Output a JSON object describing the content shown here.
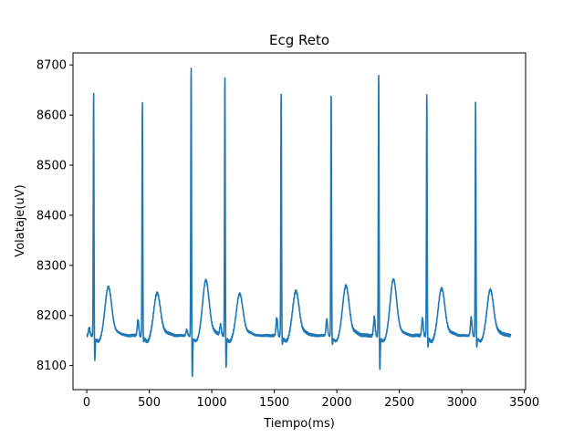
{
  "chart_data": {
    "type": "line",
    "title": "Ecg Reto",
    "xlabel": "Tiempo(ms)",
    "ylabel": "Volataje(uV)",
    "xlim": [
      -110,
      3510
    ],
    "ylim": [
      8052,
      8724
    ],
    "x_ticks": [
      0,
      500,
      1000,
      1500,
      2000,
      2500,
      3000,
      3500
    ],
    "y_ticks": [
      8100,
      8200,
      8300,
      8400,
      8500,
      8600,
      8700
    ],
    "grid": false,
    "series": [
      {
        "color": "#1f77b4",
        "x_start": 0,
        "x_end": 3390,
        "baseline": 8160,
        "beats": [
          {
            "t": 55,
            "peak": 8655,
            "trough": 8112,
            "t_wave": 8257,
            "pre": 8175
          },
          {
            "t": 445,
            "peak": 8636,
            "trough": 8150,
            "t_wave": 8245,
            "pre": 8192
          },
          {
            "t": 835,
            "peak": 8707,
            "trough": 8080,
            "t_wave": 8270,
            "pre": 8172
          },
          {
            "t": 1105,
            "peak": 8685,
            "trough": 8100,
            "t_wave": 8243,
            "pre": 8180
          },
          {
            "t": 1555,
            "peak": 8655,
            "trough": 8145,
            "t_wave": 8248,
            "pre": 8196
          },
          {
            "t": 1955,
            "peak": 8649,
            "trough": 8145,
            "t_wave": 8259,
            "pre": 8193
          },
          {
            "t": 2335,
            "peak": 8692,
            "trough": 8095,
            "t_wave": 8272,
            "pre": 8198
          },
          {
            "t": 2720,
            "peak": 8652,
            "trough": 8140,
            "t_wave": 8254,
            "pre": 8195
          },
          {
            "t": 3110,
            "peak": 8634,
            "trough": 8140,
            "t_wave": 8251,
            "pre": 8197
          }
        ]
      }
    ]
  }
}
